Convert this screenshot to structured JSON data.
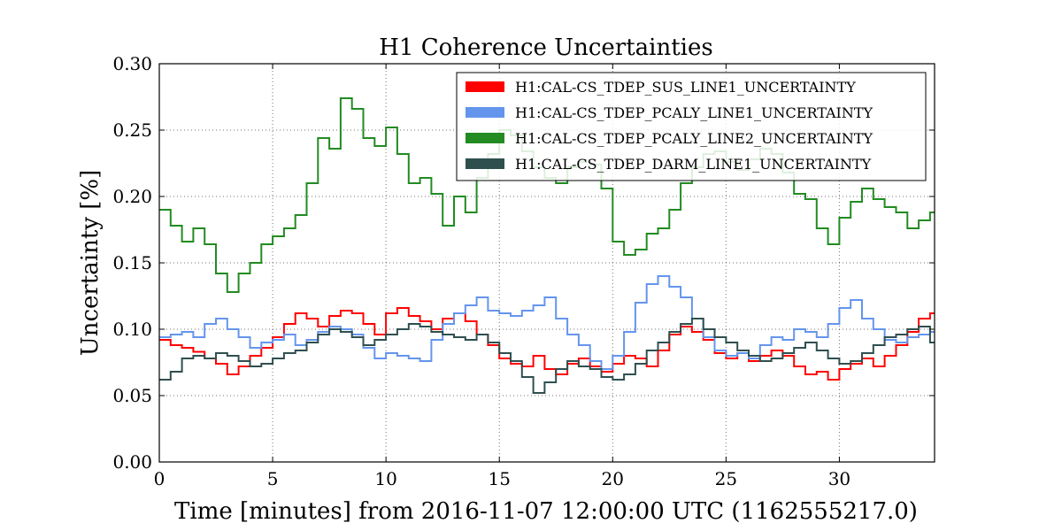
{
  "chart_data": {
    "type": "line",
    "step": true,
    "title": "H1 Coherence Uncertainties",
    "xlabel": "Time [minutes] from 2016-11-07 12:00:00 UTC (1162555217.0)",
    "ylabel": "Uncertainty [%]",
    "xlim": [
      0,
      34.2
    ],
    "ylim": [
      0,
      0.3
    ],
    "xticks": [
      0,
      5,
      10,
      15,
      20,
      25,
      30
    ],
    "xtick_labels": [
      "0",
      "5",
      "10",
      "15",
      "20",
      "25",
      "30"
    ],
    "yticks": [
      0,
      0.05,
      0.1,
      0.15,
      0.2,
      0.25,
      0.3
    ],
    "ytick_labels": [
      "0.00",
      "0.05",
      "0.10",
      "0.15",
      "0.20",
      "0.25",
      "0.30"
    ],
    "grid": true,
    "legend_position": "top-right",
    "x": [
      0,
      0.5,
      1,
      1.5,
      2,
      2.5,
      3,
      3.5,
      4,
      4.5,
      5,
      5.5,
      6,
      6.5,
      7,
      7.5,
      8,
      8.5,
      9,
      9.5,
      10,
      10.5,
      11,
      11.5,
      12,
      12.5,
      13,
      13.5,
      14,
      14.5,
      15,
      15.5,
      16,
      16.5,
      17,
      17.5,
      18,
      18.5,
      19,
      19.5,
      20,
      20.5,
      21,
      21.5,
      22,
      22.5,
      23,
      23.5,
      24,
      24.5,
      25,
      25.5,
      26,
      26.5,
      27,
      27.5,
      28,
      28.5,
      29,
      29.5,
      30,
      30.5,
      31,
      31.5,
      32,
      32.5,
      33,
      33.5,
      34
    ],
    "series": [
      {
        "name": "H1:CAL-CS_TDEP_SUS_LINE1_UNCERTAINTY",
        "color": "#ff0000",
        "values": [
          0.092,
          0.088,
          0.086,
          0.083,
          0.078,
          0.074,
          0.066,
          0.072,
          0.08,
          0.086,
          0.094,
          0.104,
          0.112,
          0.108,
          0.102,
          0.11,
          0.114,
          0.112,
          0.104,
          0.096,
          0.112,
          0.116,
          0.11,
          0.106,
          0.1,
          0.108,
          0.112,
          0.106,
          0.096,
          0.088,
          0.078,
          0.074,
          0.072,
          0.08,
          0.07,
          0.066,
          0.074,
          0.078,
          0.072,
          0.068,
          0.074,
          0.08,
          0.078,
          0.072,
          0.084,
          0.096,
          0.102,
          0.098,
          0.092,
          0.082,
          0.078,
          0.082,
          0.076,
          0.08,
          0.084,
          0.08,
          0.072,
          0.066,
          0.068,
          0.062,
          0.07,
          0.074,
          0.078,
          0.072,
          0.08,
          0.088,
          0.098,
          0.108,
          0.112
        ]
      },
      {
        "name": "H1:CAL-CS_TDEP_PCALY_LINE1_UNCERTAINTY",
        "color": "#6495ed",
        "values": [
          0.094,
          0.096,
          0.098,
          0.094,
          0.104,
          0.108,
          0.1,
          0.094,
          0.086,
          0.09,
          0.092,
          0.096,
          0.088,
          0.092,
          0.098,
          0.102,
          0.1,
          0.096,
          0.086,
          0.078,
          0.082,
          0.08,
          0.078,
          0.076,
          0.092,
          0.104,
          0.112,
          0.118,
          0.124,
          0.114,
          0.112,
          0.11,
          0.114,
          0.118,
          0.124,
          0.108,
          0.096,
          0.088,
          0.076,
          0.07,
          0.08,
          0.098,
          0.12,
          0.134,
          0.14,
          0.132,
          0.124,
          0.108,
          0.094,
          0.084,
          0.08,
          0.082,
          0.078,
          0.088,
          0.094,
          0.092,
          0.1,
          0.098,
          0.094,
          0.104,
          0.116,
          0.122,
          0.108,
          0.1,
          0.092,
          0.09,
          0.094,
          0.096,
          0.098
        ]
      },
      {
        "name": "H1:CAL-CS_TDEP_PCALY_LINE2_UNCERTAINTY",
        "color": "#228b22",
        "values": [
          0.19,
          0.178,
          0.166,
          0.176,
          0.164,
          0.142,
          0.128,
          0.142,
          0.15,
          0.164,
          0.17,
          0.176,
          0.186,
          0.21,
          0.244,
          0.236,
          0.274,
          0.266,
          0.244,
          0.238,
          0.252,
          0.232,
          0.21,
          0.214,
          0.202,
          0.178,
          0.2,
          0.188,
          0.214,
          0.232,
          0.25,
          0.246,
          0.234,
          0.222,
          0.214,
          0.21,
          0.222,
          0.226,
          0.224,
          0.206,
          0.166,
          0.156,
          0.16,
          0.172,
          0.176,
          0.19,
          0.21,
          0.222,
          0.232,
          0.234,
          0.226,
          0.22,
          0.228,
          0.236,
          0.232,
          0.218,
          0.202,
          0.198,
          0.176,
          0.164,
          0.184,
          0.196,
          0.206,
          0.198,
          0.192,
          0.188,
          0.176,
          0.182,
          0.188
        ]
      },
      {
        "name": "H1:CAL-CS_TDEP_DARM_LINE1_UNCERTAINTY",
        "color": "#2f4f4f",
        "values": [
          0.062,
          0.068,
          0.078,
          0.08,
          0.078,
          0.082,
          0.08,
          0.076,
          0.072,
          0.074,
          0.078,
          0.082,
          0.084,
          0.09,
          0.096,
          0.1,
          0.098,
          0.094,
          0.088,
          0.092,
          0.096,
          0.1,
          0.104,
          0.102,
          0.098,
          0.096,
          0.094,
          0.092,
          0.096,
          0.09,
          0.082,
          0.076,
          0.064,
          0.052,
          0.06,
          0.07,
          0.076,
          0.072,
          0.07,
          0.064,
          0.062,
          0.066,
          0.074,
          0.084,
          0.09,
          0.098,
          0.104,
          0.108,
          0.1,
          0.094,
          0.09,
          0.084,
          0.08,
          0.076,
          0.078,
          0.082,
          0.086,
          0.09,
          0.084,
          0.078,
          0.074,
          0.076,
          0.082,
          0.088,
          0.094,
          0.096,
          0.1,
          0.102,
          0.09
        ]
      }
    ]
  }
}
